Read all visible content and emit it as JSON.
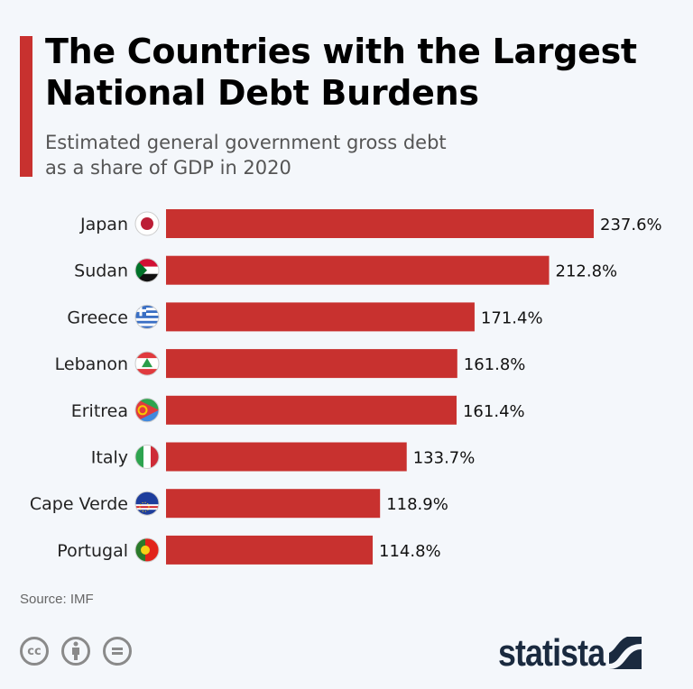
{
  "chart_data": {
    "type": "bar",
    "orientation": "horizontal",
    "title": "The Countries with the Largest National Debt Burdens",
    "subtitle_lines": [
      "Estimated general government gross debt",
      "as a share of GDP in 2020"
    ],
    "categories": [
      "Japan",
      "Sudan",
      "Greece",
      "Lebanon",
      "Eritrea",
      "Italy",
      "Cape Verde",
      "Portugal"
    ],
    "values": [
      237.6,
      212.8,
      171.4,
      161.8,
      161.4,
      133.7,
      118.9,
      114.8
    ],
    "value_labels": [
      "237.6%",
      "212.8%",
      "171.4%",
      "161.8%",
      "161.4%",
      "133.7%",
      "118.9%",
      "114.8%"
    ],
    "flag_icons": [
      "japan-flag-icon",
      "sudan-flag-icon",
      "greece-flag-icon",
      "lebanon-flag-icon",
      "eritrea-flag-icon",
      "italy-flag-icon",
      "cape-verde-flag-icon",
      "portugal-flag-icon"
    ],
    "xlabel": "",
    "ylabel": "",
    "xlim": [
      0,
      240
    ],
    "grid": false,
    "bar_color": "#c8312f"
  },
  "source": "Source: IMF",
  "license_icons": [
    "cc-icon",
    "attribution-icon",
    "no-derivatives-icon"
  ],
  "logo": "statista",
  "colors": {
    "accent": "#c8312f",
    "logo": "#1a2a3f",
    "background": "#f4f7fb"
  }
}
